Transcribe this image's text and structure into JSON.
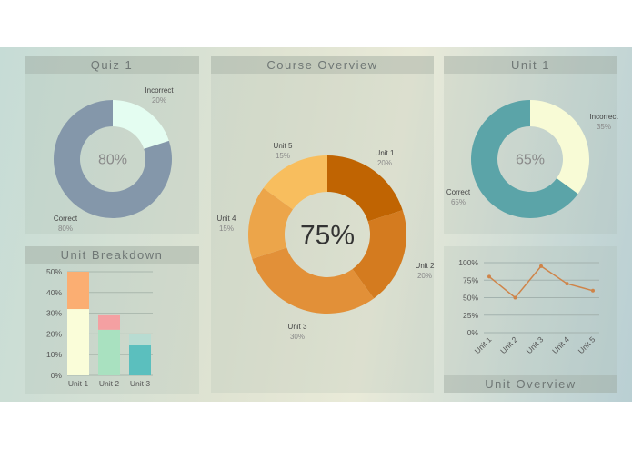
{
  "panels": {
    "quiz": "Quiz 1",
    "course": "Course Overview",
    "unit1": "Unit 1",
    "breakdown": "Unit Breakdown",
    "overview": "Unit Overview"
  },
  "chart_data": [
    {
      "type": "pie",
      "title": "Quiz 1",
      "center_label": "80%",
      "slices": [
        {
          "label": "Incorrect",
          "value": 20,
          "text": "20%",
          "color": "#e4fdf1"
        },
        {
          "label": "Correct",
          "value": 80,
          "text": "80%",
          "color": "#8497aa"
        }
      ]
    },
    {
      "type": "pie",
      "title": "Course Overview",
      "center_label": "75%",
      "slices": [
        {
          "label": "Unit 1",
          "value": 20,
          "text": "20%",
          "color": "#c06402"
        },
        {
          "label": "Unit 2",
          "value": 20,
          "text": "20%",
          "color": "#d47b1f"
        },
        {
          "label": "Unit 3",
          "value": 30,
          "text": "30%",
          "color": "#e29038"
        },
        {
          "label": "Unit 4",
          "value": 15,
          "text": "15%",
          "color": "#eca54a"
        },
        {
          "label": "Unit 5",
          "value": 15,
          "text": "15%",
          "color": "#f8be5e"
        }
      ]
    },
    {
      "type": "pie",
      "title": "Unit 1",
      "center_label": "65%",
      "slices": [
        {
          "label": "Incorrect",
          "value": 35,
          "text": "35%",
          "color": "#f8fbd6"
        },
        {
          "label": "Correct",
          "value": 65,
          "text": "65%",
          "color": "#5ba4a8"
        }
      ]
    },
    {
      "type": "bar",
      "stacked": true,
      "title": "Unit Breakdown",
      "categories": [
        "Unit 1",
        "Unit 2",
        "Unit 3"
      ],
      "ylim": [
        0,
        50
      ],
      "yticks": [
        "0%",
        "10%",
        "20%",
        "30%",
        "40%",
        "50%"
      ],
      "series": [
        {
          "values": [
            32,
            22,
            14.5
          ],
          "colors": [
            "#fafdd9",
            "#a9e1c0",
            "#5bbfbe"
          ]
        },
        {
          "values": [
            18,
            7,
            5.5
          ],
          "colors": [
            "#fbae72",
            "#f4a0a2",
            "#b8dcd2"
          ]
        }
      ]
    },
    {
      "type": "line",
      "title": "Unit Overview",
      "categories": [
        "Unit 1",
        "Unit 2",
        "Unit 3",
        "Unit 4",
        "Unit 5"
      ],
      "values": [
        80,
        50,
        95,
        70,
        60
      ],
      "ylim": [
        0,
        100
      ],
      "yticks": [
        "0%",
        "25%",
        "50%",
        "75%",
        "100%"
      ],
      "color": "#cf8449",
      "grid": true
    }
  ]
}
